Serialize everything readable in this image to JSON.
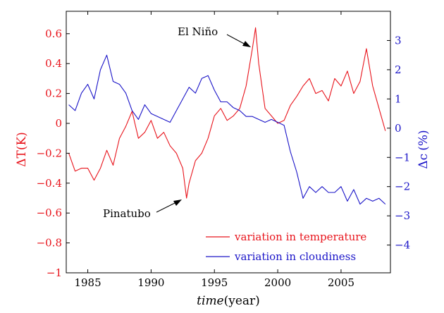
{
  "chart_data": {
    "type": "line",
    "xlabel": "time",
    "xlabel_unit": "(year)",
    "xlim": [
      1983.3,
      2008.9
    ],
    "xticks": [
      1985,
      1990,
      1995,
      2000,
      2005
    ],
    "xtick_labels": [
      "1985",
      "1990",
      "1995",
      "2000",
      "2005"
    ],
    "y_left": {
      "label_symbol": "ΔT",
      "label_unit": "(K)",
      "ylim": [
        -1,
        0.75
      ],
      "ticks": [
        -1,
        -0.8,
        -0.6,
        -0.4,
        -0.2,
        0,
        0.2,
        0.4,
        0.6
      ],
      "tick_labels": [
        "−1",
        "−0.8",
        "−0.6",
        "−0.4",
        "−0.2",
        "0",
        "0.2",
        "0.4",
        "0.6"
      ],
      "color": "#e8141c"
    },
    "y_right": {
      "label_symbol": "Δc",
      "label_unit": "(%)",
      "ylim": [
        -4.95,
        4.0
      ],
      "ticks": [
        -4,
        -3,
        -2,
        -1,
        0,
        1,
        2,
        3
      ],
      "tick_labels": [
        "−4",
        "−3",
        "−2",
        "−1",
        "0",
        "1",
        "2",
        "3"
      ],
      "color": "#1a14c8"
    },
    "grid": false,
    "legend_position": "bottom-right",
    "series": [
      {
        "name": "variation in temperature",
        "axis": "left",
        "color": "#e8141c",
        "x": [
          1983.5,
          1984.0,
          1984.5,
          1985.0,
          1985.5,
          1986.0,
          1986.5,
          1987.0,
          1987.5,
          1988.0,
          1988.5,
          1989.0,
          1989.5,
          1990.0,
          1990.5,
          1991.0,
          1991.5,
          1992.0,
          1992.5,
          1992.8,
          1993.0,
          1993.5,
          1994.0,
          1994.5,
          1995.0,
          1995.5,
          1996.0,
          1996.5,
          1997.0,
          1997.5,
          1998.0,
          1998.25,
          1998.5,
          1999.0,
          1999.5,
          2000.0,
          2000.5,
          2001.0,
          2001.5,
          2002.0,
          2002.5,
          2003.0,
          2003.5,
          2004.0,
          2004.5,
          2005.0,
          2005.5,
          2006.0,
          2006.5,
          2007.0,
          2007.5,
          2008.0,
          2008.5
        ],
        "values": [
          -0.2,
          -0.32,
          -0.3,
          -0.3,
          -0.38,
          -0.3,
          -0.18,
          -0.28,
          -0.1,
          -0.02,
          0.08,
          -0.1,
          -0.06,
          0.02,
          -0.1,
          -0.06,
          -0.15,
          -0.2,
          -0.3,
          -0.5,
          -0.4,
          -0.25,
          -0.2,
          -0.1,
          0.05,
          0.1,
          0.02,
          0.05,
          0.1,
          0.25,
          0.5,
          0.64,
          0.4,
          0.1,
          0.05,
          0.0,
          0.02,
          0.12,
          0.18,
          0.25,
          0.3,
          0.2,
          0.22,
          0.15,
          0.3,
          0.25,
          0.35,
          0.2,
          0.28,
          0.5,
          0.25,
          0.1,
          -0.05
        ]
      },
      {
        "name": "variation in cloudiness",
        "axis": "right",
        "color": "#1a14c8",
        "x": [
          1983.5,
          1984.0,
          1984.5,
          1985.0,
          1985.5,
          1986.0,
          1986.5,
          1987.0,
          1987.5,
          1988.0,
          1988.5,
          1989.0,
          1989.5,
          1990.0,
          1990.5,
          1991.0,
          1991.5,
          1992.0,
          1992.5,
          1993.0,
          1993.5,
          1994.0,
          1994.5,
          1995.0,
          1995.5,
          1996.0,
          1996.5,
          1997.0,
          1997.5,
          1998.0,
          1998.5,
          1999.0,
          1999.5,
          2000.0,
          2000.5,
          2001.0,
          2001.5,
          2002.0,
          2002.5,
          2003.0,
          2003.5,
          2004.0,
          2004.5,
          2005.0,
          2005.5,
          2006.0,
          2006.5,
          2007.0,
          2007.5,
          2008.0,
          2008.5
        ],
        "values": [
          0.8,
          0.6,
          1.2,
          1.5,
          1.0,
          2.0,
          2.5,
          1.6,
          1.5,
          1.2,
          0.6,
          0.3,
          0.8,
          0.5,
          0.4,
          0.3,
          0.2,
          0.6,
          1.0,
          1.4,
          1.2,
          1.7,
          1.8,
          1.3,
          0.9,
          0.9,
          0.7,
          0.6,
          0.4,
          0.4,
          0.3,
          0.2,
          0.3,
          0.2,
          0.1,
          -0.8,
          -1.5,
          -2.4,
          -2.0,
          -2.2,
          -2.0,
          -2.2,
          -2.2,
          -2.0,
          -2.5,
          -2.1,
          -2.6,
          -2.4,
          -2.5,
          -2.4,
          -2.6
        ]
      }
    ],
    "annotations": [
      {
        "text": "El Niño",
        "target_x": 1998.2,
        "target_y": 0.64,
        "axis": "left"
      },
      {
        "text": "Pinatubo",
        "target_x": 1992.7,
        "target_y": -0.55,
        "axis": "left"
      }
    ]
  }
}
